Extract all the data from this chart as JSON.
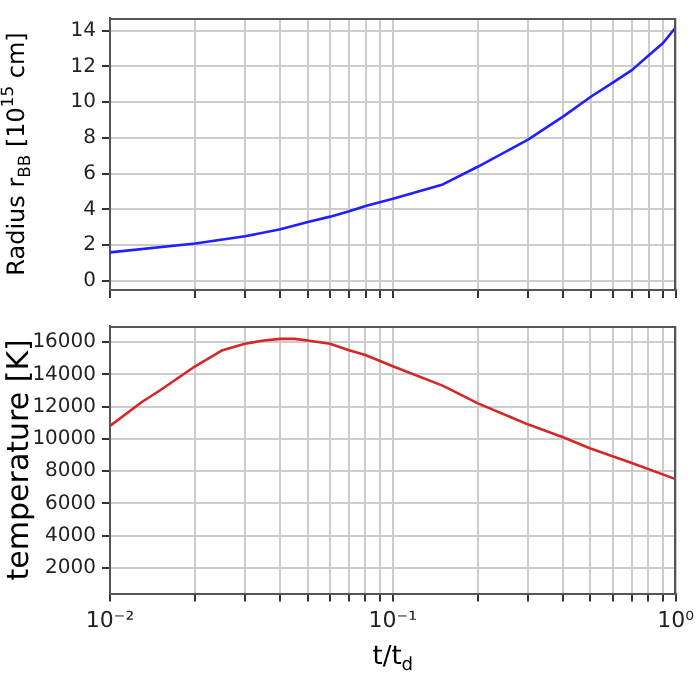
{
  "chart_data": [
    {
      "type": "line",
      "ylabel": "Radius r$_{BB}$ [10$^{15}$ cm]",
      "color": "#1f1fff",
      "grid": true,
      "tick_labels": "y",
      "log": "x",
      "x": [
        0.01,
        0.02,
        0.03,
        0.04,
        0.05,
        0.06,
        0.07,
        0.08,
        0.1,
        0.15,
        0.2,
        0.3,
        0.4,
        0.5,
        0.6,
        0.7,
        0.8,
        0.9,
        1
      ],
      "values": [
        1.6,
        2.1,
        2.5,
        2.9,
        3.3,
        3.6,
        3.9,
        4.2,
        4.6,
        5.4,
        6.4,
        7.9,
        9.2,
        10.3,
        11.1,
        11.8,
        12.6,
        13.3,
        14.2
      ],
      "xlim": [
        0.01,
        1
      ],
      "ylim": [
        -0.5,
        14.7
      ],
      "yticks": [
        0,
        2,
        4,
        6,
        8,
        10,
        12,
        14
      ],
      "xticks": [
        {
          "value": 0.01,
          "label": null
        },
        {
          "value": 0.02,
          "label": null
        },
        {
          "value": 0.03,
          "label": null
        },
        {
          "value": 0.04,
          "label": null
        },
        {
          "value": 0.05,
          "label": null
        },
        {
          "value": 0.06,
          "label": null
        },
        {
          "value": 0.07,
          "label": null
        },
        {
          "value": 0.08,
          "label": null
        },
        {
          "value": 0.09,
          "label": null
        },
        {
          "value": 0.1,
          "label": null
        },
        {
          "value": 0.2,
          "label": null
        },
        {
          "value": 0.3,
          "label": null
        },
        {
          "value": 0.4,
          "label": null
        },
        {
          "value": 0.5,
          "label": null
        },
        {
          "value": 0.6,
          "label": null
        },
        {
          "value": 0.7,
          "label": null
        },
        {
          "value": 0.8,
          "label": null
        },
        {
          "value": 0.9,
          "label": null
        },
        {
          "value": 1,
          "label": null
        }
      ]
    },
    {
      "type": "line",
      "ylabel": "temperature [K]",
      "xlabel": "t/t$_{d}$",
      "color": "#d62728",
      "grid": true,
      "log": "x",
      "x": [
        0.01,
        0.013,
        0.015,
        0.02,
        0.025,
        0.03,
        0.035,
        0.04,
        0.045,
        0.05,
        0.06,
        0.07,
        0.08,
        0.1,
        0.15,
        0.2,
        0.3,
        0.4,
        0.5,
        0.7,
        1
      ],
      "values": [
        10800,
        12300,
        13000,
        14500,
        15500,
        15900,
        16100,
        16200,
        16200,
        16100,
        15900,
        15500,
        15200,
        14500,
        13300,
        12200,
        10900,
        10100,
        9400,
        8500,
        7500
      ],
      "xlim": [
        0.01,
        1
      ],
      "ylim": [
        400,
        17000
      ],
      "yticks": [
        2000,
        4000,
        6000,
        8000,
        10000,
        12000,
        14000,
        16000
      ],
      "xticks": [
        {
          "value": 0.01,
          "label": "10⁻²"
        },
        {
          "value": 0.02,
          "label": null
        },
        {
          "value": 0.03,
          "label": null
        },
        {
          "value": 0.04,
          "label": null
        },
        {
          "value": 0.05,
          "label": null
        },
        {
          "value": 0.06,
          "label": null
        },
        {
          "value": 0.07,
          "label": null
        },
        {
          "value": 0.08,
          "label": null
        },
        {
          "value": 0.09,
          "label": null
        },
        {
          "value": 0.1,
          "label": "10⁻¹"
        },
        {
          "value": 0.2,
          "label": null
        },
        {
          "value": 0.3,
          "label": null
        },
        {
          "value": 0.4,
          "label": null
        },
        {
          "value": 0.5,
          "label": null
        },
        {
          "value": 0.6,
          "label": null
        },
        {
          "value": 0.7,
          "label": null
        },
        {
          "value": 0.8,
          "label": null
        },
        {
          "value": 0.9,
          "label": null
        },
        {
          "value": 1,
          "label": "10⁰"
        }
      ]
    }
  ]
}
